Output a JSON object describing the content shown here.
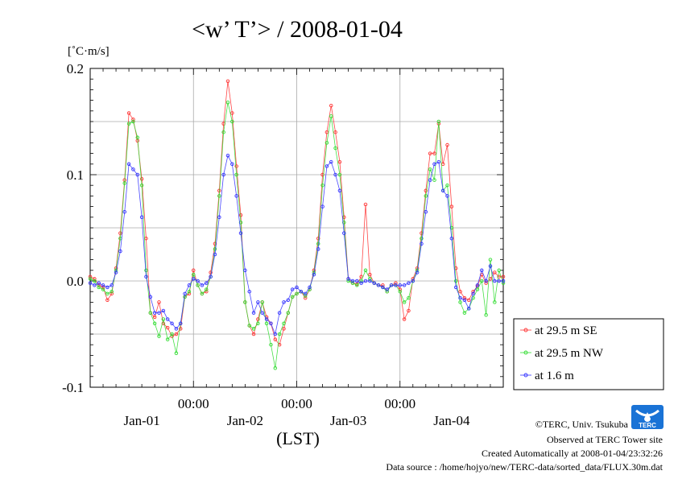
{
  "chart_data": {
    "type": "line",
    "title": "<w’ T’> / 2008-01-04",
    "ylabel": "[˚C·m/s]",
    "xlabel": "(LST)",
    "ylim": [
      -0.1,
      0.2
    ],
    "yticks": [
      {
        "value": -0.1,
        "label": "-0.1"
      },
      {
        "value": 0.0,
        "label": "0.0"
      },
      {
        "value": 0.1,
        "label": "0.1"
      },
      {
        "value": 0.2,
        "label": "0.2"
      }
    ],
    "xlim_hours": [
      0,
      96
    ],
    "xticks": [
      {
        "hours": 24,
        "label": "00:00"
      },
      {
        "hours": 48,
        "label": "00:00"
      },
      {
        "hours": 72,
        "label": "00:00"
      }
    ],
    "day_labels": [
      {
        "hours": 12,
        "label": "Jan-01"
      },
      {
        "hours": 36,
        "label": "Jan-02"
      },
      {
        "hours": 60,
        "label": "Jan-03"
      },
      {
        "hours": 84,
        "label": "Jan-04"
      }
    ],
    "legend_position": "bottom-right, outside plot",
    "grid": true,
    "series": [
      {
        "name": "at 29.5 m SE",
        "color": "#ff3333",
        "values": [
          [
            0,
            0.004
          ],
          [
            1,
            0.002
          ],
          [
            2,
            -0.004
          ],
          [
            3,
            -0.006
          ],
          [
            4,
            -0.018
          ],
          [
            5,
            -0.012
          ],
          [
            6,
            0.012
          ],
          [
            7,
            0.045
          ],
          [
            8,
            0.095
          ],
          [
            9,
            0.158
          ],
          [
            10,
            0.152
          ],
          [
            11,
            0.132
          ],
          [
            12,
            0.096
          ],
          [
            13,
            0.04
          ],
          [
            14,
            -0.03
          ],
          [
            15,
            -0.034
          ],
          [
            16,
            -0.02
          ],
          [
            17,
            -0.04
          ],
          [
            18,
            -0.044
          ],
          [
            19,
            -0.052
          ],
          [
            20,
            -0.05
          ],
          [
            21,
            -0.045
          ],
          [
            22,
            -0.015
          ],
          [
            23,
            -0.012
          ],
          [
            24,
            0.01
          ],
          [
            25,
            -0.004
          ],
          [
            26,
            -0.012
          ],
          [
            27,
            -0.01
          ],
          [
            28,
            0.008
          ],
          [
            29,
            0.035
          ],
          [
            30,
            0.085
          ],
          [
            31,
            0.148
          ],
          [
            32,
            0.188
          ],
          [
            33,
            0.158
          ],
          [
            34,
            0.108
          ],
          [
            35,
            0.062
          ],
          [
            36,
            -0.02
          ],
          [
            37,
            -0.042
          ],
          [
            38,
            -0.05
          ],
          [
            39,
            -0.036
          ],
          [
            40,
            -0.02
          ],
          [
            41,
            -0.034
          ],
          [
            42,
            -0.04
          ],
          [
            43,
            -0.055
          ],
          [
            44,
            -0.06
          ],
          [
            45,
            -0.045
          ],
          [
            46,
            -0.03
          ],
          [
            47,
            -0.015
          ],
          [
            48,
            -0.012
          ],
          [
            49,
            -0.01
          ],
          [
            50,
            -0.016
          ],
          [
            51,
            -0.008
          ],
          [
            52,
            0.01
          ],
          [
            53,
            0.04
          ],
          [
            54,
            0.1
          ],
          [
            55,
            0.14
          ],
          [
            56,
            0.165
          ],
          [
            57,
            0.14
          ],
          [
            58,
            0.112
          ],
          [
            59,
            0.06
          ],
          [
            60,
            0.002
          ],
          [
            61,
            -0.002
          ],
          [
            62,
            -0.003
          ],
          [
            63,
            0.004
          ],
          [
            64,
            0.072
          ],
          [
            65,
            0.006
          ],
          [
            66,
            -0.002
          ],
          [
            67,
            -0.004
          ],
          [
            68,
            -0.004
          ],
          [
            69,
            -0.01
          ],
          [
            70,
            -0.004
          ],
          [
            71,
            -0.002
          ],
          [
            72,
            -0.008
          ],
          [
            73,
            -0.036
          ],
          [
            74,
            -0.028
          ],
          [
            75,
            0.002
          ],
          [
            76,
            0.012
          ],
          [
            77,
            0.045
          ],
          [
            78,
            0.085
          ],
          [
            79,
            0.12
          ],
          [
            80,
            0.12
          ],
          [
            81,
            0.148
          ],
          [
            82,
            0.11
          ],
          [
            83,
            0.128
          ],
          [
            84,
            0.07
          ],
          [
            85,
            0.012
          ],
          [
            86,
            -0.01
          ],
          [
            87,
            -0.016
          ],
          [
            88,
            -0.018
          ],
          [
            89,
            -0.01
          ],
          [
            90,
            -0.005
          ],
          [
            91,
            0.006
          ],
          [
            92,
            -0.002
          ],
          [
            93,
            0.002
          ],
          [
            94,
            0.008
          ],
          [
            95,
            0.004
          ],
          [
            96,
            0.004
          ]
        ]
      },
      {
        "name": "at 29.5 m NW",
        "color": "#33dd33",
        "values": [
          [
            0,
            0.002
          ],
          [
            1,
            0.0
          ],
          [
            2,
            -0.006
          ],
          [
            3,
            -0.008
          ],
          [
            4,
            -0.012
          ],
          [
            5,
            -0.01
          ],
          [
            6,
            0.01
          ],
          [
            7,
            0.04
          ],
          [
            8,
            0.092
          ],
          [
            9,
            0.148
          ],
          [
            10,
            0.15
          ],
          [
            11,
            0.135
          ],
          [
            12,
            0.09
          ],
          [
            13,
            0.01
          ],
          [
            14,
            -0.03
          ],
          [
            15,
            -0.04
          ],
          [
            16,
            -0.052
          ],
          [
            17,
            -0.036
          ],
          [
            18,
            -0.055
          ],
          [
            19,
            -0.05
          ],
          [
            20,
            -0.068
          ],
          [
            21,
            -0.04
          ],
          [
            22,
            -0.015
          ],
          [
            23,
            -0.01
          ],
          [
            24,
            0.006
          ],
          [
            25,
            -0.004
          ],
          [
            26,
            -0.012
          ],
          [
            27,
            -0.008
          ],
          [
            28,
            0.004
          ],
          [
            29,
            0.03
          ],
          [
            30,
            0.08
          ],
          [
            31,
            0.14
          ],
          [
            32,
            0.168
          ],
          [
            33,
            0.15
          ],
          [
            34,
            0.1
          ],
          [
            35,
            0.055
          ],
          [
            36,
            -0.02
          ],
          [
            37,
            -0.042
          ],
          [
            38,
            -0.045
          ],
          [
            39,
            -0.04
          ],
          [
            40,
            -0.02
          ],
          [
            41,
            -0.04
          ],
          [
            42,
            -0.06
          ],
          [
            43,
            -0.082
          ],
          [
            44,
            -0.05
          ],
          [
            45,
            -0.04
          ],
          [
            46,
            -0.03
          ],
          [
            47,
            -0.015
          ],
          [
            48,
            -0.012
          ],
          [
            49,
            -0.01
          ],
          [
            50,
            -0.014
          ],
          [
            51,
            -0.008
          ],
          [
            52,
            0.008
          ],
          [
            53,
            0.035
          ],
          [
            54,
            0.09
          ],
          [
            55,
            0.13
          ],
          [
            56,
            0.155
          ],
          [
            57,
            0.125
          ],
          [
            58,
            0.1
          ],
          [
            59,
            0.055
          ],
          [
            60,
            0.0
          ],
          [
            61,
            -0.002
          ],
          [
            62,
            -0.004
          ],
          [
            63,
            0.0
          ],
          [
            64,
            0.01
          ],
          [
            65,
            0.002
          ],
          [
            66,
            -0.002
          ],
          [
            67,
            -0.004
          ],
          [
            68,
            -0.006
          ],
          [
            69,
            -0.01
          ],
          [
            70,
            -0.004
          ],
          [
            71,
            -0.004
          ],
          [
            72,
            -0.01
          ],
          [
            73,
            -0.02
          ],
          [
            74,
            -0.016
          ],
          [
            75,
            0.0
          ],
          [
            76,
            0.01
          ],
          [
            77,
            0.04
          ],
          [
            78,
            0.08
          ],
          [
            79,
            0.105
          ],
          [
            80,
            0.095
          ],
          [
            81,
            0.15
          ],
          [
            82,
            0.085
          ],
          [
            83,
            0.09
          ],
          [
            84,
            0.05
          ],
          [
            85,
            0.0
          ],
          [
            86,
            -0.02
          ],
          [
            87,
            -0.03
          ],
          [
            88,
            -0.026
          ],
          [
            89,
            -0.016
          ],
          [
            90,
            -0.008
          ],
          [
            91,
            0.0
          ],
          [
            92,
            -0.032
          ],
          [
            93,
            0.02
          ],
          [
            94,
            -0.02
          ],
          [
            95,
            0.01
          ],
          [
            96,
            -0.002
          ]
        ]
      },
      {
        "name": "at 1.6 m",
        "color": "#3333ff",
        "values": [
          [
            0,
            -0.002
          ],
          [
            1,
            -0.004
          ],
          [
            2,
            -0.002
          ],
          [
            3,
            -0.004
          ],
          [
            4,
            -0.006
          ],
          [
            5,
            -0.004
          ],
          [
            6,
            0.008
          ],
          [
            7,
            0.028
          ],
          [
            8,
            0.065
          ],
          [
            9,
            0.11
          ],
          [
            10,
            0.105
          ],
          [
            11,
            0.1
          ],
          [
            12,
            0.06
          ],
          [
            13,
            0.004
          ],
          [
            14,
            -0.015
          ],
          [
            15,
            -0.03
          ],
          [
            16,
            -0.03
          ],
          [
            17,
            -0.028
          ],
          [
            18,
            -0.036
          ],
          [
            19,
            -0.04
          ],
          [
            20,
            -0.045
          ],
          [
            21,
            -0.04
          ],
          [
            22,
            -0.012
          ],
          [
            23,
            -0.004
          ],
          [
            24,
            0.002
          ],
          [
            25,
            0.0
          ],
          [
            26,
            -0.004
          ],
          [
            27,
            -0.002
          ],
          [
            28,
            0.004
          ],
          [
            29,
            0.025
          ],
          [
            30,
            0.06
          ],
          [
            31,
            0.1
          ],
          [
            32,
            0.118
          ],
          [
            33,
            0.11
          ],
          [
            34,
            0.08
          ],
          [
            35,
            0.045
          ],
          [
            36,
            0.01
          ],
          [
            37,
            -0.01
          ],
          [
            38,
            -0.03
          ],
          [
            39,
            -0.02
          ],
          [
            40,
            -0.03
          ],
          [
            41,
            -0.036
          ],
          [
            42,
            -0.04
          ],
          [
            43,
            -0.05
          ],
          [
            44,
            -0.03
          ],
          [
            45,
            -0.02
          ],
          [
            46,
            -0.018
          ],
          [
            47,
            -0.008
          ],
          [
            48,
            -0.006
          ],
          [
            49,
            -0.01
          ],
          [
            50,
            -0.012
          ],
          [
            51,
            -0.006
          ],
          [
            52,
            0.006
          ],
          [
            53,
            0.03
          ],
          [
            54,
            0.07
          ],
          [
            55,
            0.108
          ],
          [
            56,
            0.112
          ],
          [
            57,
            0.1
          ],
          [
            58,
            0.085
          ],
          [
            59,
            0.045
          ],
          [
            60,
            0.002
          ],
          [
            61,
            0.0
          ],
          [
            62,
            0.0
          ],
          [
            63,
            -0.002
          ],
          [
            64,
            0.0
          ],
          [
            65,
            0.0
          ],
          [
            66,
            -0.002
          ],
          [
            67,
            -0.004
          ],
          [
            68,
            -0.006
          ],
          [
            69,
            -0.008
          ],
          [
            70,
            -0.004
          ],
          [
            71,
            -0.004
          ],
          [
            72,
            -0.004
          ],
          [
            73,
            -0.004
          ],
          [
            74,
            -0.002
          ],
          [
            75,
            0.0
          ],
          [
            76,
            0.008
          ],
          [
            77,
            0.035
          ],
          [
            78,
            0.065
          ],
          [
            79,
            0.095
          ],
          [
            80,
            0.11
          ],
          [
            81,
            0.112
          ],
          [
            82,
            0.085
          ],
          [
            83,
            0.08
          ],
          [
            84,
            0.04
          ],
          [
            85,
            -0.006
          ],
          [
            86,
            -0.016
          ],
          [
            87,
            -0.018
          ],
          [
            88,
            -0.026
          ],
          [
            89,
            -0.012
          ],
          [
            90,
            -0.004
          ],
          [
            91,
            0.01
          ],
          [
            92,
            0.0
          ],
          [
            93,
            0.014
          ],
          [
            94,
            0.0
          ],
          [
            95,
            0.0
          ],
          [
            96,
            0.0
          ]
        ]
      }
    ]
  },
  "footer": {
    "copyright": "©TERC, Univ. Tsukuba",
    "site": "Observed at TERC Tower site",
    "created": "Created Automatically at 2008-01-04/23:32:26",
    "source": "Data source : /home/hojyo/new/TERC-data/sorted_data/FLUX.30m.dat",
    "logo_text": "TERC"
  }
}
